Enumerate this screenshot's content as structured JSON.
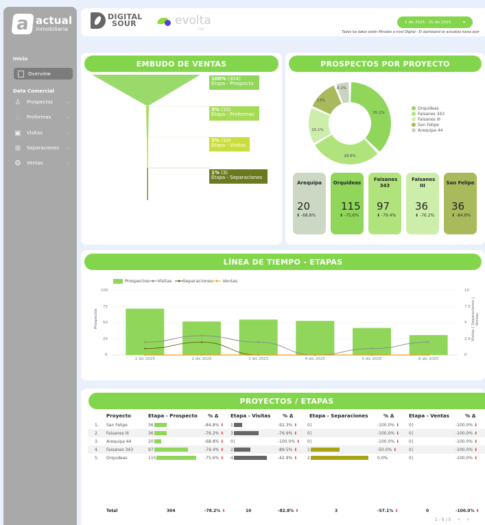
{
  "sidebar": {
    "brand_line1": "actual",
    "brand_line2": "inmobiliaria",
    "section_inicio": "Inicio",
    "overview_label": "Overview",
    "section_data": "Data Comercial",
    "items": [
      {
        "label": "Prospectos",
        "icon": "person-icon"
      },
      {
        "label": "Proformas",
        "icon": "document-icon"
      },
      {
        "label": "Visitas",
        "icon": "monitor-icon"
      },
      {
        "label": "Separaciones",
        "icon": "grid-icon"
      },
      {
        "label": "Ventas",
        "icon": "badge-icon"
      }
    ]
  },
  "header": {
    "ds_line1": "DIGITAL",
    "ds_line2": "SOUR",
    "evolta": "evolta",
    "evolta_sub": "CRM",
    "date_range": "1 dic 2025 - 31 dic 2025",
    "date_chevron": "▾",
    "disclaimer": "Todos los datos están filtrados a nivel Digital - El dashboard se actualiza hasta ayer"
  },
  "funnel": {
    "title": "EMBUDO DE VENTAS",
    "stages": [
      {
        "pct": "100%",
        "count": "(304)",
        "label": "Etapa - Prospecto",
        "color": "#8fd65a"
      },
      {
        "pct": "3%",
        "count": "(10)",
        "label": "Etapa - Proformas",
        "color": "#a6dc55"
      },
      {
        "pct": "3%",
        "count": "(10)",
        "label": "Etapa - Visitas",
        "color": "#c9de3c"
      },
      {
        "pct": "1%",
        "count": "(3)",
        "label": "Etapa - Separaciones",
        "color": "#6b7a1f"
      }
    ]
  },
  "prospectos": {
    "title": "PROSPECTOS POR PROYECTO",
    "legend": [
      {
        "label": "Orquideas",
        "color": "#8fd65a"
      },
      {
        "label": "Faisanes 343",
        "color": "#b1e37c"
      },
      {
        "label": "Faisanes III",
        "color": "#cdeeaa"
      },
      {
        "label": "San Felipe",
        "color": "#a9ba5c"
      },
      {
        "label": "Arequipa 44",
        "color": "#c8d4c0"
      }
    ],
    "slices": [
      "35.1%",
      "28.6%",
      "15.1%",
      "13%",
      "8.1%"
    ],
    "kpis": [
      {
        "name": "Arequipa",
        "value": "20",
        "delta": "-68.8%",
        "color": "#cdd8c4"
      },
      {
        "name": "Orquideas",
        "value": "115",
        "delta": "-75.6%",
        "color": "#8fd65a"
      },
      {
        "name": "Faisanes 343",
        "value": "97",
        "delta": "-79.4%",
        "color": "#b1e37c"
      },
      {
        "name": "Faisanes III",
        "value": "36",
        "delta": "-76.2%",
        "color": "#cdeeaa"
      },
      {
        "name": "San Felipe",
        "value": "36",
        "delta": "-84.8%",
        "color": "#a9ba5c"
      }
    ],
    "delta_arrow": "⬇"
  },
  "timeline": {
    "title": "LÍNEA DE TIEMPO - ETAPAS",
    "legend": [
      "Prospectos",
      "Visitas",
      "Separaciones",
      "Ventas"
    ],
    "ylabel_left": "Prospectos",
    "ylabel_right": "Visitas | Separaciones | Ventas",
    "yticks_left": [
      "100",
      "75",
      "50",
      "25",
      "0"
    ],
    "yticks_right": [
      "10",
      "7.5",
      "5",
      "2.5",
      "0"
    ]
  },
  "chart_data": {
    "type": "bar",
    "title": "LÍNEA DE TIEMPO - ETAPAS",
    "categories": [
      "1 dic 2025",
      "2 dic 2025",
      "3 dic 2025",
      "4 dic 2025",
      "5 dic 2025",
      "6 dic 2025"
    ],
    "series": [
      {
        "name": "Prospectos",
        "type": "bar",
        "axis": "left",
        "color": "#8fd65a",
        "values": [
          72,
          52,
          55,
          53,
          42,
          31
        ]
      },
      {
        "name": "Visitas",
        "type": "line",
        "axis": "right",
        "color": "#888888",
        "values": [
          2,
          3,
          2,
          0,
          1,
          2
        ]
      },
      {
        "name": "Separaciones",
        "type": "line",
        "axis": "right",
        "color": "#6b5a10",
        "values": [
          1,
          2,
          0,
          0,
          0,
          0
        ]
      },
      {
        "name": "Ventas",
        "type": "line",
        "axis": "right",
        "color": "#f39c12",
        "values": [
          0,
          0,
          0,
          0,
          0,
          0
        ]
      }
    ],
    "xlabel": "",
    "ylabel": "Prospectos",
    "ylabel_right": "Visitas | Separaciones | Ventas",
    "ylim": [
      0,
      100
    ],
    "ylim_right": [
      0,
      10
    ],
    "grid": true,
    "legend_position": "top"
  },
  "table": {
    "title": "PROYECTOS / ETAPAS",
    "headers": [
      "Proyecto",
      "Etapa - Prospecto",
      "% Δ",
      "Etapa - Visitas",
      "% Δ",
      "Etapa - Separaciones",
      "% Δ",
      "Etapa - Ventas",
      "% Δ"
    ],
    "rows": [
      {
        "idx": "1.",
        "proyecto": "San Felipe",
        "prospecto": "36",
        "p_pct": "-84.8%",
        "visitas": "1",
        "v_pct": "-92.3%",
        "separaciones": "0",
        "s_pct": "-100.0%",
        "ventas": "0",
        "ve_pct": "-100.0%"
      },
      {
        "idx": "2.",
        "proyecto": "Faisanes III",
        "prospecto": "36",
        "p_pct": "-76.2%",
        "visitas": "3",
        "v_pct": "-76.9%",
        "separaciones": "0",
        "s_pct": "-100.0%",
        "ventas": "0",
        "ve_pct": "-100.0%"
      },
      {
        "idx": "3.",
        "proyecto": "Arequipa 44",
        "prospecto": "20",
        "p_pct": "-68.8%",
        "visitas": "0",
        "v_pct": "-100.0%",
        "separaciones": "0",
        "s_pct": "-100.0%",
        "ventas": "0",
        "ve_pct": "-100.0%"
      },
      {
        "idx": "4.",
        "proyecto": "Faisanes 343",
        "prospecto": "97",
        "p_pct": "-79.4%",
        "visitas": "2",
        "v_pct": "-89.5%",
        "separaciones": "1",
        "s_pct": "-50.0%",
        "ventas": "0",
        "ve_pct": "-100.0%"
      },
      {
        "idx": "5.",
        "proyecto": "Orquideas",
        "prospecto": "115",
        "p_pct": "-75.6%",
        "visitas": "4",
        "v_pct": "-42.9%",
        "separaciones": "2",
        "s_pct": "0.0%",
        "ventas": "0",
        "ve_pct": "-100.0%"
      }
    ],
    "total": {
      "label": "Total",
      "prospecto": "304",
      "p_pct": "-78.2%",
      "visitas": "10",
      "v_pct": "-82.8%",
      "separaciones": "3",
      "s_pct": "-57.1%",
      "ventas": "0",
      "ve_pct": "-100.0%"
    },
    "pagination": "1 - 5 / 5",
    "prev": "‹",
    "next": "›",
    "down_arrow": "⬇"
  }
}
